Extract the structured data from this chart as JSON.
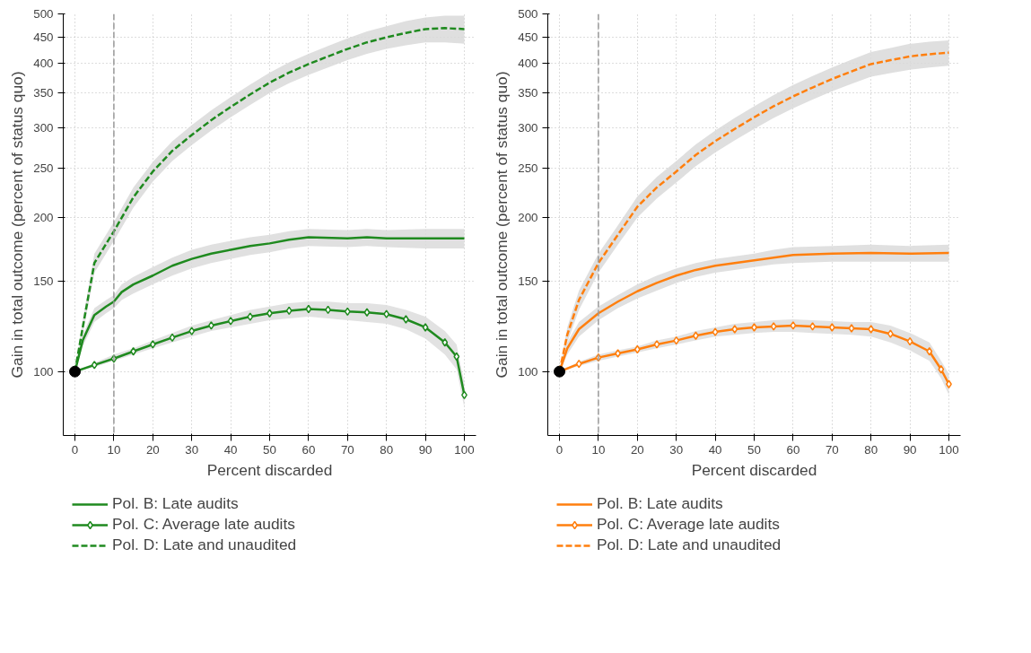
{
  "chart_data": [
    {
      "type": "line",
      "xlabel": "Percent discarded",
      "ylabel": "Gain in total outcome (percent of status quo)",
      "log": "y",
      "xlim": [
        -3,
        103
      ],
      "ylim": [
        75,
        500
      ],
      "xticks": [
        0,
        10,
        20,
        30,
        40,
        50,
        60,
        70,
        80,
        90,
        100
      ],
      "yticks": [
        100,
        150,
        200,
        250,
        300,
        350,
        400,
        450,
        500
      ],
      "grid": true,
      "legend": "bottom",
      "ref_lines": [
        {
          "axis": "x",
          "value": 10,
          "color": "#999999",
          "line_style": "dashed"
        }
      ],
      "series": [
        {
          "name": "Pol. B: Late audits",
          "color": "#1f8a1f",
          "line_style": "solid",
          "marker": "none",
          "x": [
            0,
            2,
            5,
            8,
            10,
            12,
            15,
            20,
            25,
            30,
            35,
            40,
            45,
            50,
            55,
            60,
            70,
            75,
            80,
            90,
            100
          ],
          "values": [
            100,
            115,
            129,
            134,
            137,
            143,
            148,
            154,
            161,
            166,
            170,
            173,
            176,
            178,
            181,
            183,
            182,
            183,
            182,
            182,
            182
          ],
          "lower": [
            100,
            112,
            125,
            130,
            133,
            138,
            142,
            148,
            154,
            159,
            163,
            166,
            169,
            171,
            174,
            176,
            175,
            176,
            175,
            174,
            174
          ],
          "upper": [
            100,
            118,
            133,
            138,
            141,
            148,
            153,
            160,
            167,
            173,
            177,
            180,
            183,
            185,
            188,
            190,
            189,
            190,
            189,
            190,
            190
          ]
        },
        {
          "name": "Pol. C: Average late audits",
          "color": "#1f8a1f",
          "line_style": "solid",
          "marker": "diamond",
          "x": [
            0,
            5,
            10,
            15,
            20,
            25,
            30,
            35,
            40,
            45,
            50,
            55,
            60,
            65,
            70,
            75,
            80,
            85,
            90,
            95,
            98,
            100
          ],
          "values": [
            100,
            103,
            106,
            109.5,
            113,
            116.5,
            120,
            123,
            125.5,
            128,
            130,
            131.5,
            132.5,
            132,
            131,
            130.5,
            129.5,
            126.5,
            122,
            114,
            107,
            90
          ],
          "lower": [
            100,
            102,
            105,
            108,
            111,
            114,
            117,
            120,
            122,
            124,
            126,
            127,
            128,
            127,
            126,
            125,
            124,
            121,
            116,
            108,
            101,
            85
          ],
          "upper": [
            100,
            104,
            108,
            111,
            115,
            119,
            123,
            126,
            129,
            132,
            134,
            136,
            137,
            137,
            136,
            136,
            135,
            132,
            128,
            120,
            113,
            95
          ]
        },
        {
          "name": "Pol. D: Late and unaudited",
          "color": "#1f8a1f",
          "line_style": "dashed",
          "marker": "none",
          "x": [
            0,
            2,
            5,
            10,
            15,
            20,
            25,
            30,
            35,
            40,
            45,
            50,
            55,
            60,
            65,
            70,
            75,
            80,
            85,
            90,
            95,
            100
          ],
          "values": [
            100,
            122,
            163,
            188,
            219,
            246,
            270,
            290,
            310,
            329,
            348,
            367,
            384,
            399,
            413,
            427,
            440,
            450,
            459,
            467,
            469,
            467
          ],
          "lower": [
            100,
            118,
            156,
            180,
            209,
            235,
            258,
            277,
            296,
            314,
            332,
            350,
            366,
            380,
            393,
            406,
            418,
            427,
            434,
            440,
            440,
            437
          ],
          "upper": [
            100,
            126,
            170,
            196,
            229,
            257,
            282,
            303,
            324,
            344,
            364,
            384,
            402,
            418,
            433,
            448,
            462,
            473,
            484,
            492,
            496,
            496
          ]
        },
        {
          "type": "scatter",
          "color": "#000000",
          "marker": "circle",
          "x": [
            0
          ],
          "values": [
            100
          ]
        }
      ]
    },
    {
      "type": "line",
      "xlabel": "Percent discarded",
      "ylabel": "Gain in total outcome (percent of status quo)",
      "log": "y",
      "xlim": [
        -3,
        103
      ],
      "ylim": [
        75,
        500
      ],
      "xticks": [
        0,
        10,
        20,
        30,
        40,
        50,
        60,
        70,
        80,
        90,
        100
      ],
      "yticks": [
        100,
        150,
        200,
        250,
        300,
        350,
        400,
        450,
        500
      ],
      "grid": true,
      "legend": "bottom",
      "ref_lines": [
        {
          "axis": "x",
          "value": 10,
          "color": "#999999",
          "line_style": "dashed"
        }
      ],
      "series": [
        {
          "name": "Pol. B: Late audits",
          "color": "#ff7f0e",
          "line_style": "solid",
          "marker": "none",
          "x": [
            0,
            2,
            5,
            10,
            15,
            20,
            25,
            30,
            35,
            40,
            45,
            50,
            55,
            60,
            70,
            80,
            90,
            100
          ],
          "values": [
            100,
            111,
            121,
            130,
            137,
            143.5,
            149,
            154,
            158,
            161,
            163,
            165,
            167,
            169,
            170,
            170.5,
            170,
            170.5
          ],
          "lower": [
            100,
            108,
            117,
            126,
            133,
            139,
            144,
            149,
            153,
            156,
            158,
            160,
            162,
            163,
            164,
            164,
            164,
            164
          ],
          "upper": [
            100,
            114,
            125,
            134,
            141,
            148,
            154,
            159,
            163,
            166,
            168,
            170,
            173,
            175,
            176,
            177,
            176,
            177
          ]
        },
        {
          "name": "Pol. C: Average late audits",
          "color": "#ff7f0e",
          "line_style": "solid",
          "marker": "diamond",
          "x": [
            0,
            5,
            10,
            15,
            20,
            25,
            30,
            35,
            40,
            45,
            50,
            55,
            60,
            65,
            70,
            75,
            80,
            85,
            90,
            95,
            98,
            100
          ],
          "values": [
            100,
            103.5,
            106.5,
            108.5,
            110.5,
            113,
            115,
            117.5,
            119.5,
            121,
            122,
            122.5,
            123,
            122.5,
            122,
            121.5,
            121,
            118.5,
            114.5,
            109.5,
            101,
            94.5
          ],
          "lower": [
            100,
            102.5,
            105,
            107,
            109,
            111,
            113,
            115,
            117,
            118,
            119,
            119.5,
            119.5,
            119,
            118.5,
            118,
            117,
            114,
            110,
            105,
            97,
            90
          ],
          "upper": [
            100,
            104.5,
            108,
            110,
            112,
            115,
            117,
            120,
            122,
            124,
            125,
            126,
            126.5,
            126,
            125.5,
            125,
            125,
            123,
            119,
            114,
            105,
            99
          ]
        },
        {
          "name": "Pol. D: Late and unaudited",
          "color": "#ff7f0e",
          "line_style": "dashed",
          "marker": "none",
          "x": [
            0,
            2,
            5,
            10,
            15,
            20,
            25,
            30,
            35,
            40,
            45,
            50,
            55,
            60,
            65,
            70,
            75,
            80,
            85,
            90,
            95,
            100
          ],
          "values": [
            100,
            118,
            138,
            163,
            185,
            210,
            229,
            246,
            265,
            282,
            298,
            314,
            330,
            345,
            359,
            373,
            386,
            399,
            406,
            413,
            417,
            420
          ],
          "lower": [
            100,
            114,
            132,
            156,
            177,
            200,
            218,
            234,
            252,
            268,
            283,
            298,
            313,
            327,
            340,
            353,
            365,
            377,
            383,
            389,
            393,
            396
          ],
          "upper": [
            100,
            122,
            144,
            170,
            193,
            220,
            240,
            258,
            278,
            296,
            313,
            330,
            347,
            363,
            378,
            393,
            407,
            421,
            429,
            437,
            441,
            444
          ]
        },
        {
          "type": "scatter",
          "color": "#000000",
          "marker": "circle",
          "x": [
            0
          ],
          "values": [
            100
          ]
        }
      ]
    }
  ]
}
